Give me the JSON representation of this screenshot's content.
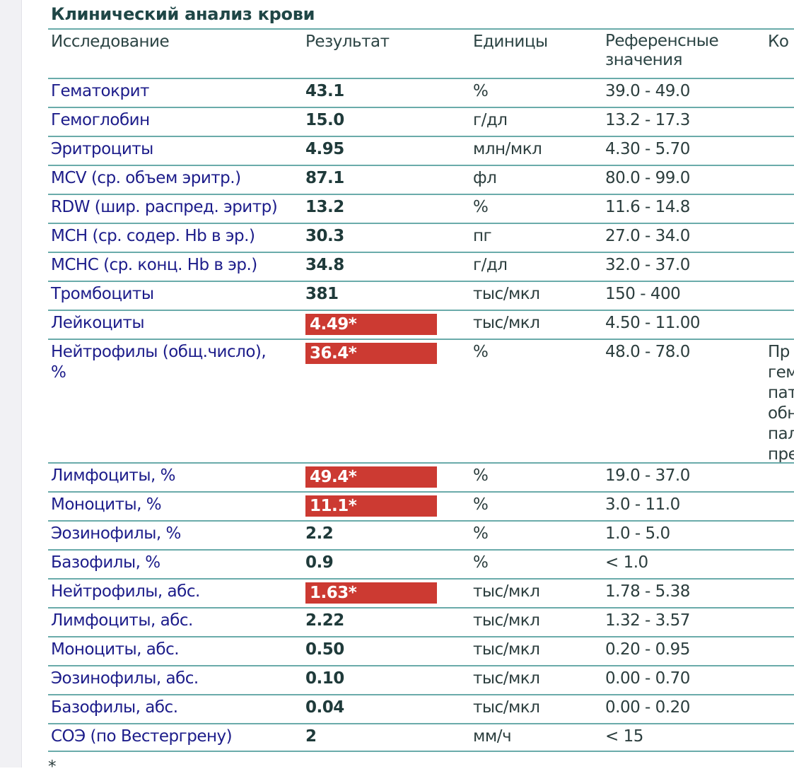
{
  "title": "Клинический анализ крови",
  "headers": {
    "name": "Исследование",
    "result": "Результат",
    "units": "Единицы",
    "reference": "Референсные\nзначения",
    "comment": "Ко"
  },
  "colors": {
    "flag": "#cc3a32",
    "rule": "#6aabaa",
    "name": "#1c1c8a"
  },
  "rows": [
    {
      "name": "Гематокрит",
      "result": "43.1",
      "units": "%",
      "reference": "39.0 - 49.0",
      "flag": false
    },
    {
      "name": "Гемоглобин",
      "result": "15.0",
      "units": "г/дл",
      "reference": "13.2 - 17.3",
      "flag": false
    },
    {
      "name": "Эритроциты",
      "result": "4.95",
      "units": "млн/мкл",
      "reference": "4.30 - 5.70",
      "flag": false
    },
    {
      "name": "MCV (ср. объем эритр.)",
      "result": "87.1",
      "units": "фл",
      "reference": "80.0 - 99.0",
      "flag": false
    },
    {
      "name": "RDW (шир. распред. эритр)",
      "result": "13.2",
      "units": "%",
      "reference": "11.6 - 14.8",
      "flag": false
    },
    {
      "name": "MCH (ср. содер. Hb в эр.)",
      "result": "30.3",
      "units": "пг",
      "reference": "27.0 - 34.0",
      "flag": false
    },
    {
      "name": "MCHC (ср. конц. Hb в эр.)",
      "result": "34.8",
      "units": "г/дл",
      "reference": "32.0 - 37.0",
      "flag": false
    },
    {
      "name": "Тромбоциты",
      "result": "381",
      "units": "тыс/мкл",
      "reference": "150 - 400",
      "flag": false
    },
    {
      "name": "Лейкоциты",
      "result": "4.49*",
      "units": "тыс/мкл",
      "reference": "4.50 - 11.00",
      "flag": true
    },
    {
      "name": "Нейтрофилы (общ.число),\n%",
      "result": "36.4*",
      "units": "%",
      "reference": "48.0 - 78.0",
      "flag": true,
      "comment": "Пр\nгем\nпат\nобн\nпал\nпре"
    },
    {
      "name": "Лимфоциты, %",
      "result": "49.4*",
      "units": "%",
      "reference": "19.0 - 37.0",
      "flag": true
    },
    {
      "name": "Моноциты, %",
      "result": "11.1*",
      "units": "%",
      "reference": "3.0 - 11.0",
      "flag": true
    },
    {
      "name": "Эозинофилы, %",
      "result": "2.2",
      "units": "%",
      "reference": "1.0 - 5.0",
      "flag": false
    },
    {
      "name": "Базофилы, %",
      "result": "0.9",
      "units": "%",
      "reference": "< 1.0",
      "flag": false
    },
    {
      "name": "Нейтрофилы, абс.",
      "result": "1.63*",
      "units": "тыс/мкл",
      "reference": "1.78 - 5.38",
      "flag": true
    },
    {
      "name": "Лимфоциты, абс.",
      "result": "2.22",
      "units": "тыс/мкл",
      "reference": "1.32 - 3.57",
      "flag": false
    },
    {
      "name": "Моноциты, абс.",
      "result": "0.50",
      "units": "тыс/мкл",
      "reference": "0.20 - 0.95",
      "flag": false
    },
    {
      "name": "Эозинофилы, абс.",
      "result": "0.10",
      "units": "тыс/мкл",
      "reference": "0.00 - 0.70",
      "flag": false
    },
    {
      "name": "Базофилы, абс.",
      "result": "0.04",
      "units": "тыс/мкл",
      "reference": "0.00 - 0.20",
      "flag": false
    },
    {
      "name": "СОЭ (по Вестергрену)",
      "result": "2",
      "units": "мм/ч",
      "reference": "< 15",
      "flag": false
    }
  ],
  "footnote": "*"
}
